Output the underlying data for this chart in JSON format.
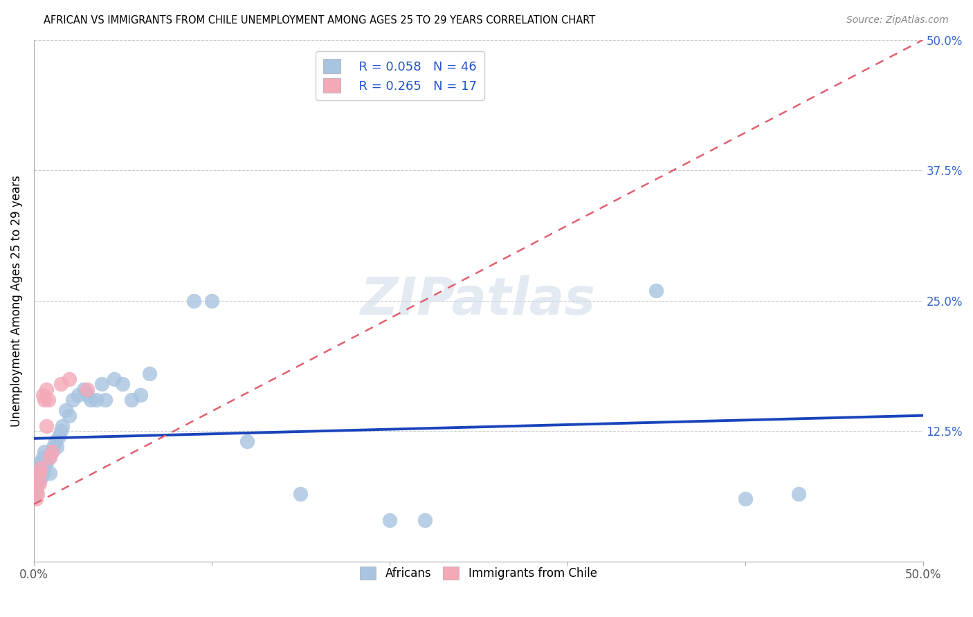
{
  "title": "AFRICAN VS IMMIGRANTS FROM CHILE UNEMPLOYMENT AMONG AGES 25 TO 29 YEARS CORRELATION CHART",
  "source": "Source: ZipAtlas.com",
  "ylabel": "Unemployment Among Ages 25 to 29 years",
  "xlim": [
    0.0,
    0.5
  ],
  "ylim": [
    0.0,
    0.5
  ],
  "xticks": [
    0.0,
    0.1,
    0.2,
    0.3,
    0.4,
    0.5
  ],
  "xticklabels": [
    "0.0%",
    "",
    "",
    "",
    "",
    "50.0%"
  ],
  "yticks": [
    0.0,
    0.125,
    0.25,
    0.375,
    0.5
  ],
  "right_yticklabels": [
    "",
    "12.5%",
    "25.0%",
    "37.5%",
    "50.0%"
  ],
  "legend_r1": "R = 0.058",
  "legend_n1": "N = 46",
  "legend_r2": "R = 0.265",
  "legend_n2": "N = 17",
  "african_color": "#a8c4e0",
  "chile_color": "#f4a8b8",
  "african_line_color": "#1a44bb",
  "chile_line_color": "#e06070",
  "watermark": "ZIPatlas",
  "african_x": [
    0.001,
    0.002,
    0.002,
    0.003,
    0.003,
    0.003,
    0.004,
    0.004,
    0.005,
    0.005,
    0.006,
    0.006,
    0.007,
    0.008,
    0.009,
    0.01,
    0.011,
    0.012,
    0.013,
    0.014,
    0.015,
    0.016,
    0.018,
    0.02,
    0.022,
    0.025,
    0.028,
    0.03,
    0.032,
    0.035,
    0.038,
    0.04,
    0.045,
    0.05,
    0.055,
    0.06,
    0.065,
    0.09,
    0.1,
    0.12,
    0.15,
    0.2,
    0.22,
    0.35,
    0.4,
    0.43
  ],
  "african_y": [
    0.065,
    0.075,
    0.09,
    0.08,
    0.085,
    0.095,
    0.08,
    0.095,
    0.085,
    0.1,
    0.09,
    0.105,
    0.095,
    0.1,
    0.085,
    0.105,
    0.11,
    0.115,
    0.11,
    0.12,
    0.125,
    0.13,
    0.145,
    0.14,
    0.155,
    0.16,
    0.165,
    0.16,
    0.155,
    0.155,
    0.17,
    0.155,
    0.175,
    0.17,
    0.155,
    0.16,
    0.18,
    0.25,
    0.25,
    0.115,
    0.065,
    0.04,
    0.04,
    0.26,
    0.06,
    0.065
  ],
  "chile_x": [
    0.001,
    0.001,
    0.002,
    0.002,
    0.003,
    0.003,
    0.004,
    0.005,
    0.006,
    0.007,
    0.007,
    0.008,
    0.009,
    0.01,
    0.015,
    0.02,
    0.03
  ],
  "chile_y": [
    0.06,
    0.07,
    0.065,
    0.08,
    0.075,
    0.085,
    0.09,
    0.16,
    0.155,
    0.13,
    0.165,
    0.155,
    0.1,
    0.105,
    0.17,
    0.175,
    0.165
  ],
  "african_line_x": [
    0.0,
    0.5
  ],
  "african_line_y": [
    0.118,
    0.14
  ],
  "chile_line_x": [
    0.0,
    0.5
  ],
  "chile_line_y": [
    0.055,
    0.5
  ]
}
